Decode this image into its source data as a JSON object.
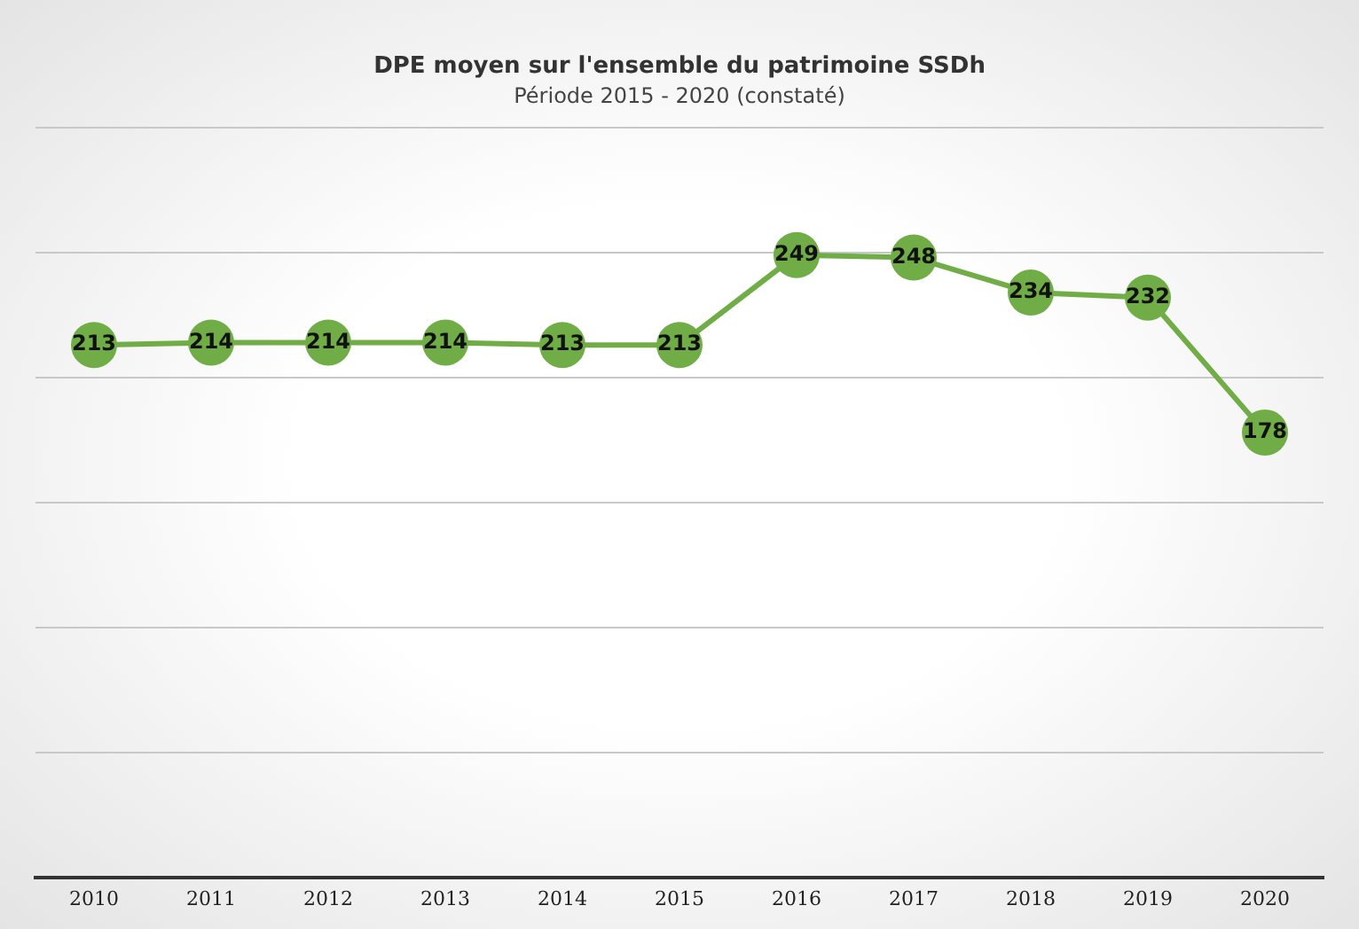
{
  "chart_data": {
    "type": "line",
    "title": "DPE moyen sur l'ensemble du patrimoine SSDh",
    "subtitle": "Période 2015 - 2020 (constaté)",
    "categories": [
      "2010",
      "2011",
      "2012",
      "2013",
      "2014",
      "2015",
      "2016",
      "2017",
      "2018",
      "2019",
      "2020"
    ],
    "series": [
      {
        "color": "#70ad47",
        "values": [
          213,
          214,
          214,
          214,
          213,
          213,
          249,
          248,
          234,
          232,
          178
        ]
      }
    ],
    "ylim": [
      0,
      300
    ],
    "yticks": [
      0,
      50,
      100,
      150,
      200,
      250,
      300
    ],
    "grid": "y",
    "tick_labels": "x",
    "data_labels": true,
    "marker": "circle",
    "legend": false
  }
}
